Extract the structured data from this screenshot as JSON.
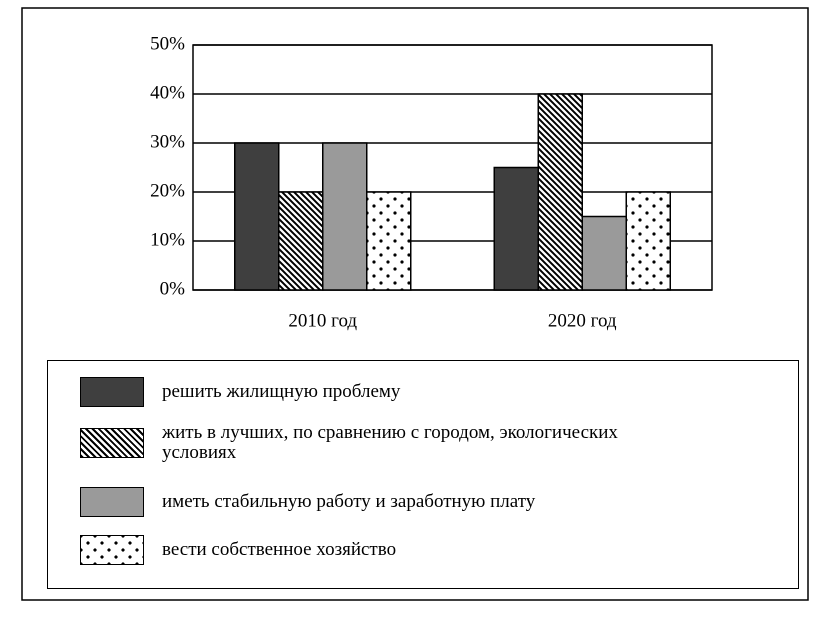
{
  "chart_data": {
    "type": "bar",
    "categories": [
      "2010 год",
      "2020 год"
    ],
    "series": [
      {
        "name": "решить жилищную проблему",
        "color": "#3f3f3f",
        "pattern": "solid",
        "values": [
          30,
          25
        ]
      },
      {
        "name": "жить в лучших, по сравнению с городом, экологических условиях",
        "color": "#000000",
        "pattern": "hatch",
        "values": [
          20,
          40
        ]
      },
      {
        "name": "иметь стабильную работу и заработную плату",
        "color": "#9a9a9a",
        "pattern": "solid",
        "values": [
          30,
          15
        ]
      },
      {
        "name": "вести собственное хозяйство",
        "color": "#000000",
        "pattern": "dots",
        "values": [
          20,
          20
        ]
      }
    ],
    "ylim": [
      0,
      50
    ],
    "yticks": [
      {
        "value": 0,
        "label": "0%"
      },
      {
        "value": 10,
        "label": "10%"
      },
      {
        "value": 20,
        "label": "20%"
      },
      {
        "value": 30,
        "label": "30%"
      },
      {
        "value": 40,
        "label": "40%"
      },
      {
        "value": 50,
        "label": "50%"
      }
    ],
    "grid": true
  }
}
